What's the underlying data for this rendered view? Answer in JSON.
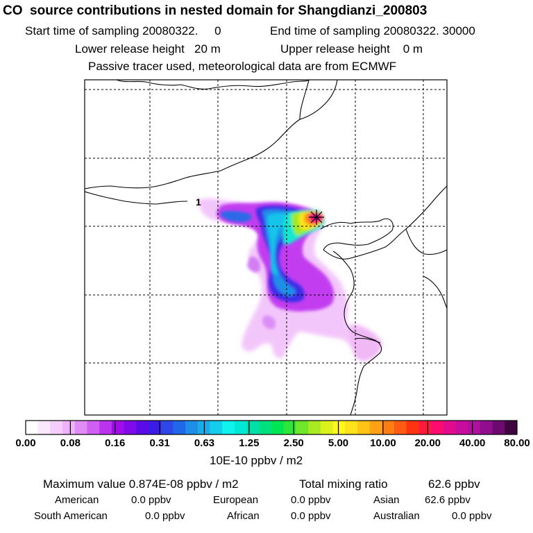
{
  "header": {
    "title": "CO  source contributions in nested domain for Shangdianzi_200803",
    "start_sampling": "Start time of sampling 20080322.     0",
    "end_sampling": "End time of sampling 20080322. 30000",
    "lower_release": "Lower release height   20 m",
    "upper_release": "Upper release height    0 m",
    "tracer_note": "Passive tracer used, meteorological data are from ECMWF"
  },
  "map": {
    "site_marker": "*",
    "release_label": "1"
  },
  "legend": {
    "ticks": [
      "0.00",
      "0.08",
      "0.16",
      "0.31",
      "0.63",
      "1.25",
      "2.50",
      "5.00",
      "10.00",
      "20.00",
      "40.00",
      "80.00"
    ],
    "units": "10E-10 ppbv / m2",
    "colors": [
      "#ffffff",
      "#fbe8fd",
      "#f4cdfb",
      "#eeb2fa",
      "#e08cf7",
      "#cf60f3",
      "#bb33ef",
      "#a10ced",
      "#7f0bea",
      "#5b0be8",
      "#3a1be8",
      "#2f46e8",
      "#2168e8",
      "#1e8ee8",
      "#19aeea",
      "#14cdec",
      "#0ff2ee",
      "#00e8d6",
      "#00dfa8",
      "#00e07e",
      "#00e652",
      "#2ee63a",
      "#6ee62a",
      "#a9ea22",
      "#dcf21c",
      "#fff61b",
      "#ffe219",
      "#ffc417",
      "#ffa115",
      "#ff7e13",
      "#ff5b12",
      "#ff3312",
      "#ff1a3c",
      "#fb0c6e",
      "#e20b8e",
      "#c80c9e",
      "#b0109e",
      "#8e0e8e",
      "#6c0a70",
      "#400540"
    ]
  },
  "footer": {
    "max_label": "Maximum value  0.874E-08 ppbv / m2",
    "total_label": "Total mixing ratio",
    "total_value": "62.6 ppbv",
    "regions": [
      {
        "name": "American",
        "value": "0.0 ppbv"
      },
      {
        "name": "European",
        "value": "0.0 ppbv"
      },
      {
        "name": "Asian",
        "value": "62.6 ppbv"
      },
      {
        "name": "South American",
        "value": "0.0 ppbv"
      },
      {
        "name": "African",
        "value": "0.0 ppbv"
      },
      {
        "name": "Australian",
        "value": "0.0 ppbv"
      }
    ]
  }
}
